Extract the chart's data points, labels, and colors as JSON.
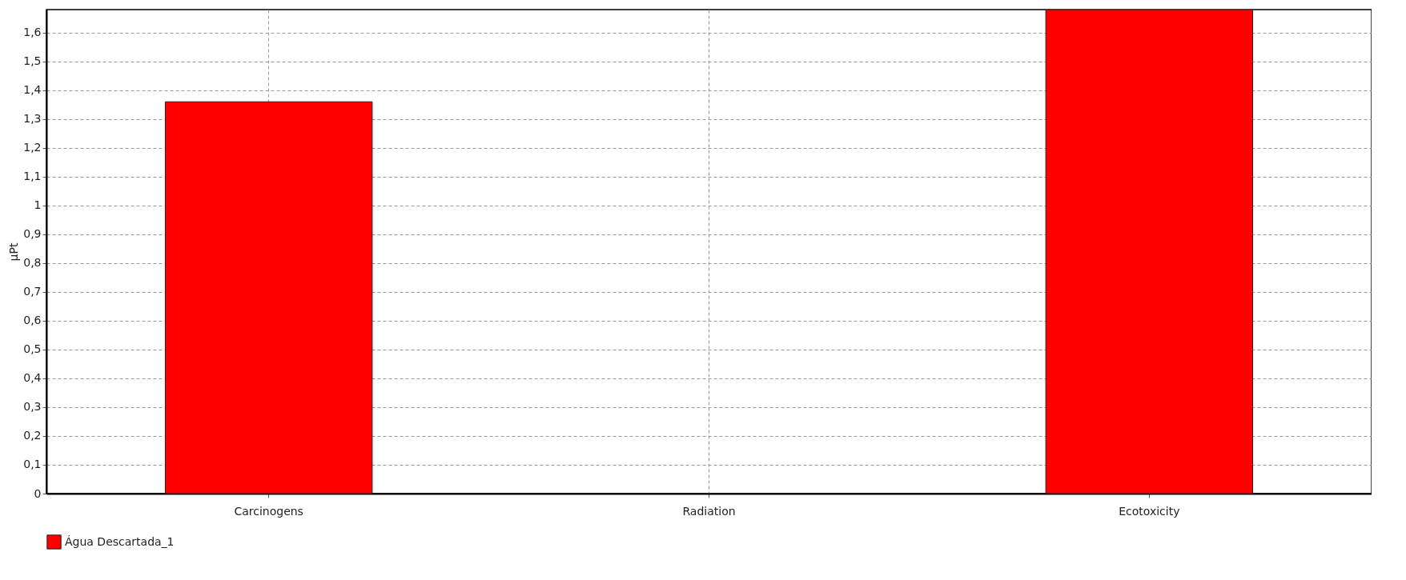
{
  "chart_data": {
    "type": "bar",
    "ylabel": "µPt",
    "categories": [
      "Carcinogens",
      "Radiation",
      "Ecotoxicity"
    ],
    "series": [
      {
        "name": "Água Descartada_1",
        "color": "#ff0000",
        "values": [
          1.36,
          null,
          1.68
        ]
      }
    ],
    "ylim": [
      0,
      1.68
    ],
    "yticks": [
      0,
      {
        "value": 0.1,
        "label": "0,1"
      },
      {
        "value": 0.2,
        "label": "0,2"
      },
      {
        "value": 0.3,
        "label": "0,3"
      },
      {
        "value": 0.4,
        "label": "0,4"
      },
      {
        "value": 0.5,
        "label": "0,5"
      },
      {
        "value": 0.6,
        "label": "0,6"
      },
      {
        "value": 0.7,
        "label": "0,7"
      },
      {
        "value": 0.8,
        "label": "0,8"
      },
      {
        "value": 0.9,
        "label": "0,9"
      },
      1,
      {
        "value": 1.1,
        "label": "1,1"
      },
      {
        "value": 1.2,
        "label": "1,2"
      },
      {
        "value": 1.3,
        "label": "1,3"
      },
      {
        "value": 1.4,
        "label": "1,4"
      },
      {
        "value": 1.5,
        "label": "1,5"
      },
      {
        "value": 1.6,
        "label": "1,6"
      }
    ],
    "grid": true,
    "legend": "bottom"
  }
}
